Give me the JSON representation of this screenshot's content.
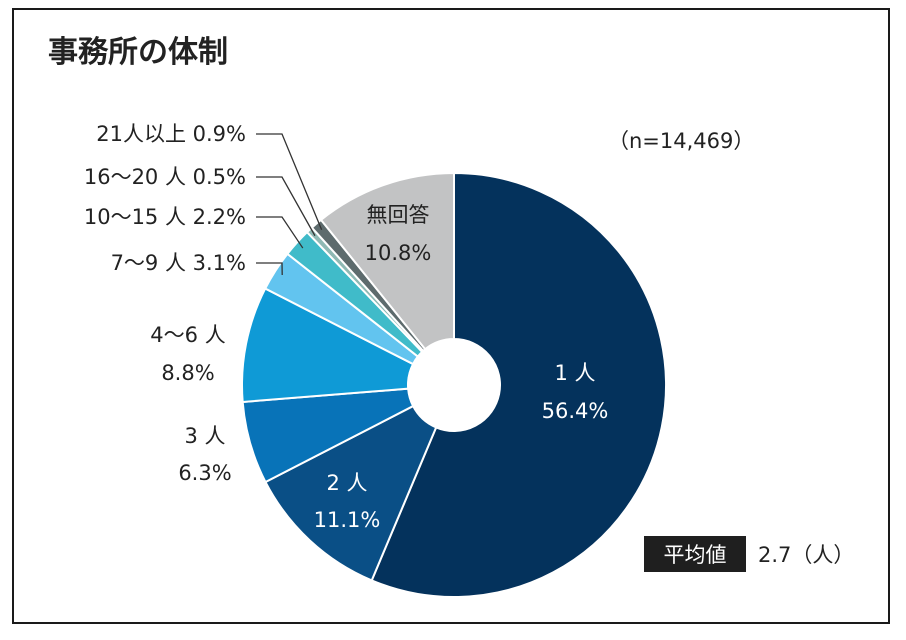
{
  "chart_data": {
    "type": "pie",
    "variant": "donut",
    "title": "事務所の体制",
    "sample_size": "（n=14,469）",
    "slices": [
      {
        "name": "1 人",
        "value": 56.4,
        "label": "56.4%",
        "color": "#04325c",
        "label_color": "#ffffff"
      },
      {
        "name": "2 人",
        "value": 11.1,
        "label": "11.1%",
        "color": "#0a4f86",
        "label_color": "#ffffff"
      },
      {
        "name": "3 人",
        "value": 6.3,
        "label": "6.3%",
        "color": "#0873b8",
        "label_color": "#222222"
      },
      {
        "name": "4〜6 人",
        "value": 8.8,
        "label": "8.8%",
        "color": "#0f9ad6",
        "label_color": "#222222"
      },
      {
        "name": "7〜9 人",
        "value": 3.1,
        "label": "3.1%",
        "color": "#62c4ef",
        "label_color": "#222222"
      },
      {
        "name": "10〜15 人",
        "value": 2.2,
        "label": "2.2%",
        "color": "#40bbc9",
        "label_color": "#222222"
      },
      {
        "name": "16〜20 人",
        "value": 0.5,
        "label": "0.5%",
        "color": "#8fb9b4",
        "label_color": "#222222"
      },
      {
        "name": "21人以上",
        "value": 0.9,
        "label": "0.9%",
        "color": "#5d6b6d",
        "label_color": "#222222"
      },
      {
        "name": "無回答",
        "value": 10.8,
        "label": "10.8%",
        "color": "#c2c3c4",
        "label_color": "#222222"
      }
    ],
    "average": {
      "label": "平均値",
      "value": "2.7（人）"
    }
  }
}
